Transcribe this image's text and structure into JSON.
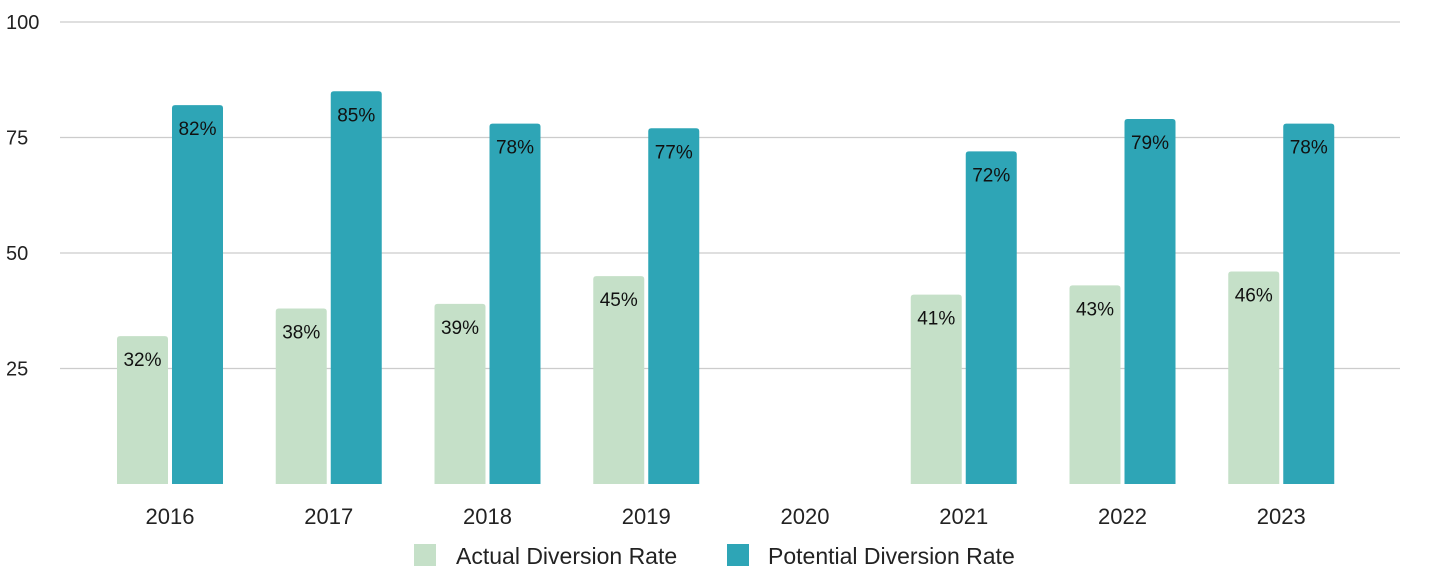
{
  "chart_data": {
    "type": "bar",
    "title": "",
    "xlabel": "",
    "ylabel": "",
    "ylim": [
      0,
      100
    ],
    "yticks": [
      25,
      50,
      75,
      100
    ],
    "grid": true,
    "legend_position": "bottom-center",
    "categories": [
      "2016",
      "2017",
      "2018",
      "2019",
      "2020",
      "2021",
      "2022",
      "2023"
    ],
    "series": [
      {
        "name": "Actual Diversion Rate",
        "color": "#c5e0c8",
        "values": [
          32,
          38,
          39,
          45,
          null,
          41,
          43,
          46
        ],
        "labels": [
          "32%",
          "38%",
          "39%",
          "45%",
          "",
          "41%",
          "43%",
          "46%"
        ]
      },
      {
        "name": "Potential Diversion Rate",
        "color": "#2ea5b6",
        "values": [
          82,
          85,
          78,
          77,
          null,
          72,
          79,
          78
        ],
        "labels": [
          "82%",
          "85%",
          "78%",
          "77%",
          "",
          "72%",
          "79%",
          "78%"
        ]
      }
    ],
    "grid_color": "#cccccc"
  }
}
